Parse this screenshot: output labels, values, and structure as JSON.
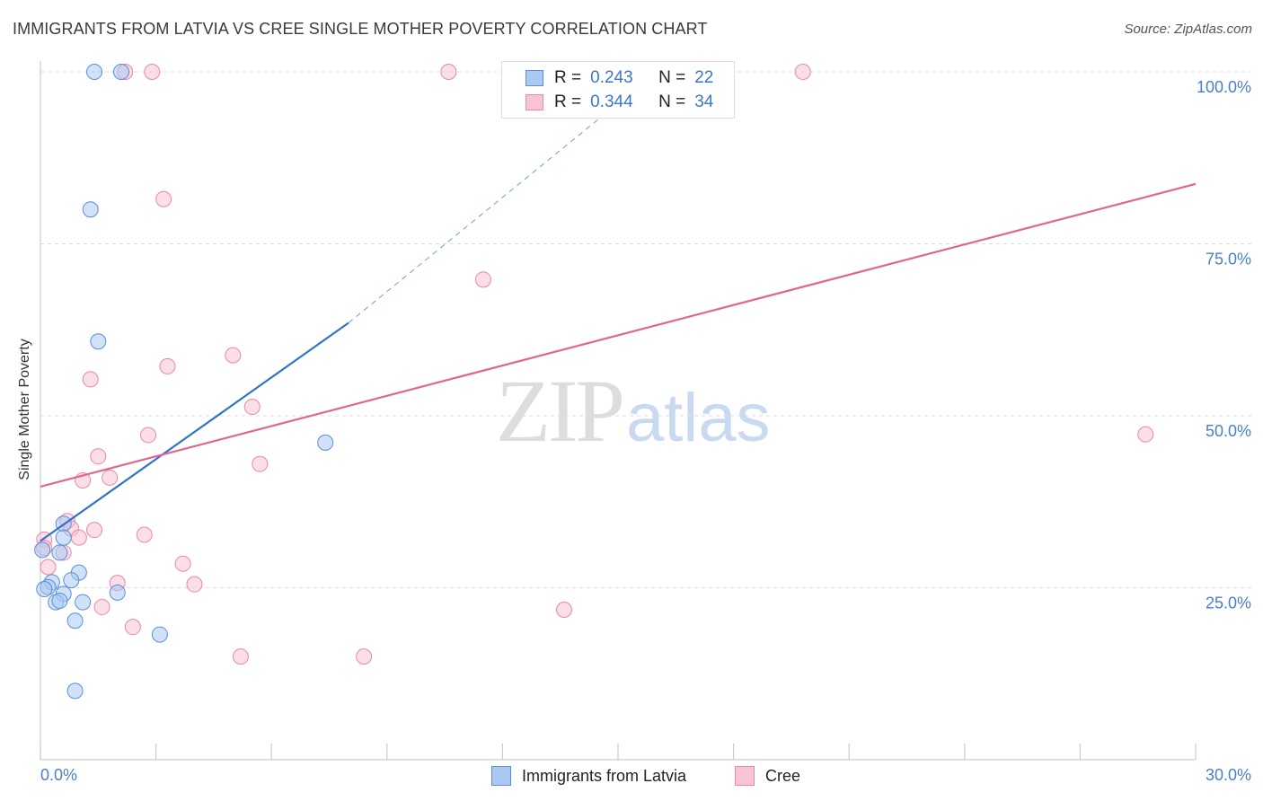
{
  "header": {
    "title": "IMMIGRANTS FROM LATVIA VS CREE SINGLE MOTHER POVERTY CORRELATION CHART",
    "source": "Source: ZipAtlas.com"
  },
  "watermark": {
    "zip": "ZIP",
    "atlas": "atlas"
  },
  "legend": {
    "rows": [
      {
        "r_label": "R =",
        "r_value": "0.243",
        "n_label": "N =",
        "n_value": "22"
      },
      {
        "r_label": "R =",
        "r_value": "0.344",
        "n_label": "N =",
        "n_value": "34"
      }
    ]
  },
  "colors": {
    "latvia_fill": "#aac8f2",
    "latvia_stroke": "#5a8fd6",
    "latvia_line": "#2f74c9",
    "cree_fill": "#f8c3d2",
    "cree_stroke": "#e58aa8",
    "cree_line": "#e06690",
    "grid": "#dddddd",
    "tick_text": "#4a7fc9"
  },
  "chart_data": {
    "type": "scatter",
    "title": "IMMIGRANTS FROM LATVIA VS CREE SINGLE MOTHER POVERTY CORRELATION CHART",
    "xlabel": "",
    "ylabel": "Single Mother Poverty",
    "xlim": [
      0,
      30
    ],
    "ylim": [
      0,
      100
    ],
    "x_tick_labels": [
      "0.0%",
      "30.0%"
    ],
    "y_ticks": [
      25,
      50,
      75,
      100
    ],
    "y_tick_labels": [
      "25.0%",
      "50.0%",
      "75.0%",
      "100.0%"
    ],
    "grid": true,
    "legend_position": "top-center",
    "series": [
      {
        "name": "Immigrants from Latvia",
        "r": 0.243,
        "n": 22,
        "points": [
          [
            1.4,
            100
          ],
          [
            2.1,
            100
          ],
          [
            1.3,
            80
          ],
          [
            1.5,
            60.8
          ],
          [
            7.4,
            46.1
          ],
          [
            0.6,
            34.3
          ],
          [
            0.6,
            32.3
          ],
          [
            0.5,
            30.1
          ],
          [
            1.0,
            27.2
          ],
          [
            0.8,
            26.1
          ],
          [
            0.3,
            25.8
          ],
          [
            0.2,
            25.1
          ],
          [
            0.6,
            24.1
          ],
          [
            0.4,
            22.9
          ],
          [
            0.5,
            23.1
          ],
          [
            1.1,
            22.9
          ],
          [
            2.0,
            24.3
          ],
          [
            0.9,
            20.2
          ],
          [
            3.1,
            18.2
          ],
          [
            0.9,
            10.0
          ],
          [
            0.1,
            24.8
          ],
          [
            0.05,
            30.5
          ]
        ],
        "trend": {
          "x0": 0,
          "y0": 31.8,
          "x1": 8,
          "y1": 63.5,
          "dashed_to": {
            "x": 16,
            "y": 100
          }
        }
      },
      {
        "name": "Cree",
        "r": 0.344,
        "n": 34,
        "points": [
          [
            2.2,
            100
          ],
          [
            2.9,
            100
          ],
          [
            10.6,
            100
          ],
          [
            14.2,
            100
          ],
          [
            19.8,
            100
          ],
          [
            3.2,
            81.5
          ],
          [
            11.5,
            69.8
          ],
          [
            5.0,
            58.8
          ],
          [
            3.3,
            57.2
          ],
          [
            1.3,
            55.3
          ],
          [
            5.5,
            51.3
          ],
          [
            2.8,
            47.2
          ],
          [
            28.7,
            47.3
          ],
          [
            1.5,
            44.1
          ],
          [
            5.7,
            43.0
          ],
          [
            1.8,
            41.0
          ],
          [
            1.1,
            40.6
          ],
          [
            0.7,
            34.7
          ],
          [
            1.4,
            33.4
          ],
          [
            0.8,
            33.6
          ],
          [
            2.7,
            32.7
          ],
          [
            1.0,
            32.3
          ],
          [
            0.1,
            32.0
          ],
          [
            0.6,
            30.1
          ],
          [
            0.2,
            28.0
          ],
          [
            3.7,
            28.5
          ],
          [
            2.0,
            25.7
          ],
          [
            4.0,
            25.5
          ],
          [
            1.6,
            22.2
          ],
          [
            13.6,
            21.8
          ],
          [
            2.4,
            19.3
          ],
          [
            5.2,
            15.0
          ],
          [
            8.4,
            15.0
          ],
          [
            0.1,
            30.8
          ]
        ],
        "trend": {
          "x0": 0,
          "y0": 39.7,
          "x1": 30,
          "y1": 83.7
        }
      }
    ]
  },
  "bottom_legend": {
    "items": [
      {
        "label": "Immigrants from Latvia"
      },
      {
        "label": "Cree"
      }
    ]
  }
}
